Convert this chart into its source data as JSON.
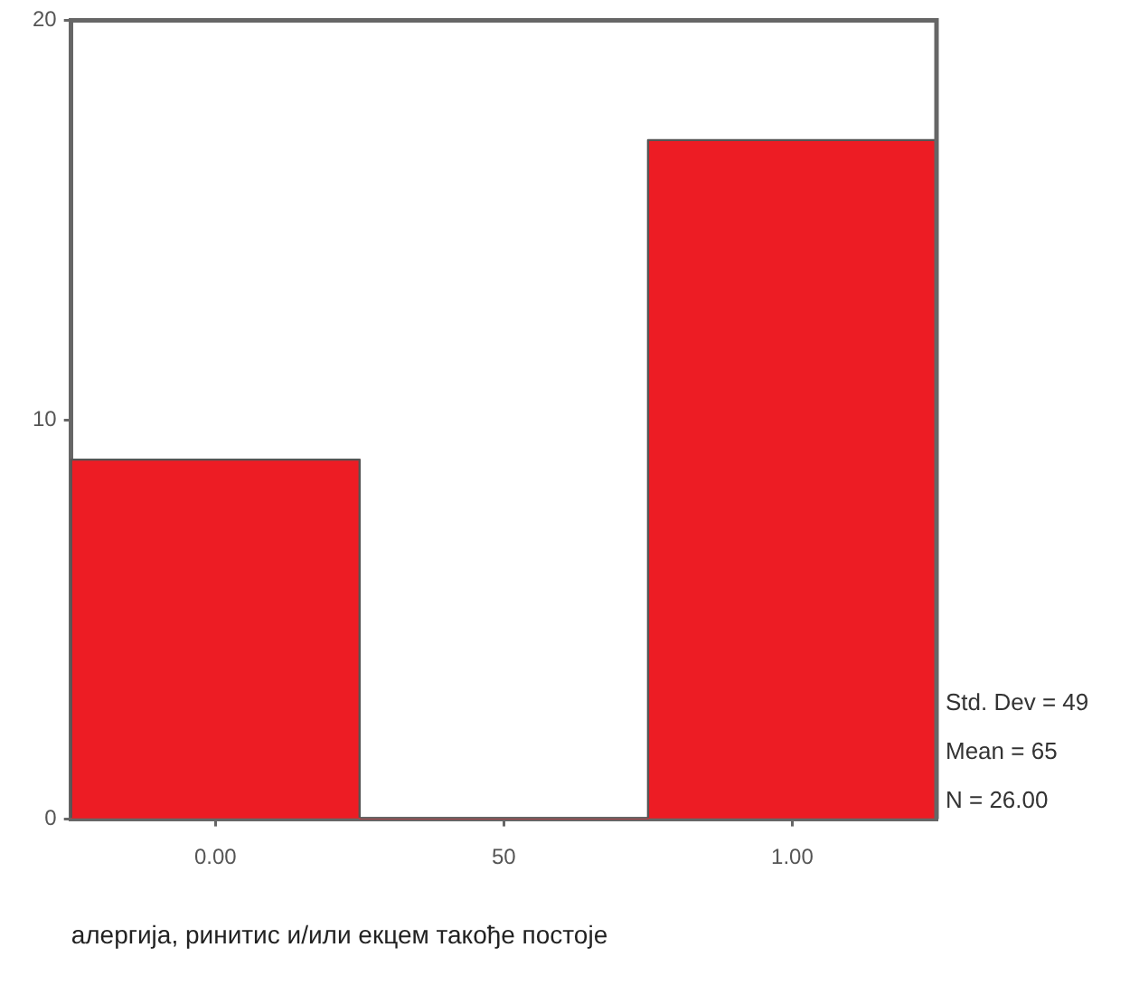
{
  "chart_data": {
    "type": "bar",
    "xlabel": "алергија, ринитис и/или екцем такође постоје",
    "categories": [
      "0.00",
      "50",
      "1.00"
    ],
    "values": [
      9,
      0,
      17
    ],
    "color": "#ed1c24",
    "ylim": [
      0,
      20
    ],
    "yticks": [
      0,
      10,
      20
    ],
    "grid": false,
    "annotations": [
      "Std. Dev = 49",
      "Mean = 65",
      "N = 26.00"
    ]
  }
}
